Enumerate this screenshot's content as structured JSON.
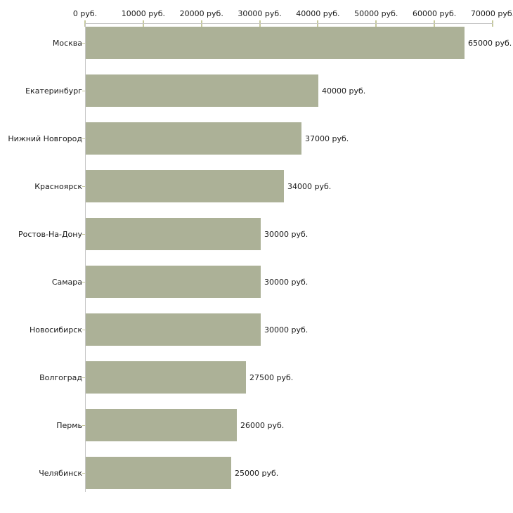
{
  "chart_data": {
    "type": "bar",
    "orientation": "horizontal",
    "categories": [
      "Москва",
      "Екатеринбург",
      "Нижний Новгород",
      "Красноярск",
      "Ростов-На-Дону",
      "Самара",
      "Новосибирск",
      "Волгоград",
      "Пермь",
      "Челябинск"
    ],
    "values": [
      65000,
      40000,
      37000,
      34000,
      30000,
      30000,
      30000,
      27500,
      26000,
      25000
    ],
    "value_labels": [
      "65000 руб.",
      "40000 руб.",
      "37000 руб.",
      "34000 руб.",
      "30000 руб.",
      "30000 руб.",
      "30000 руб.",
      "27500 руб.",
      "26000 руб.",
      "25000 руб."
    ],
    "x_tick_values": [
      0,
      10000,
      20000,
      30000,
      40000,
      50000,
      60000,
      70000
    ],
    "x_tick_labels": [
      "0 руб.",
      "10000 руб.",
      "20000 руб.",
      "30000 руб.",
      "40000 руб.",
      "50000 руб.",
      "60000 руб.",
      "70000 руб."
    ],
    "xlim": [
      0,
      70000
    ],
    "unit": "руб.",
    "grid": "off",
    "legend": "none",
    "colors": {
      "bar": "#acb197",
      "axis_line": "#c6c6c6",
      "tick": "#c6c99b",
      "text": "#1a1a1a",
      "background": "#ffffff"
    }
  }
}
